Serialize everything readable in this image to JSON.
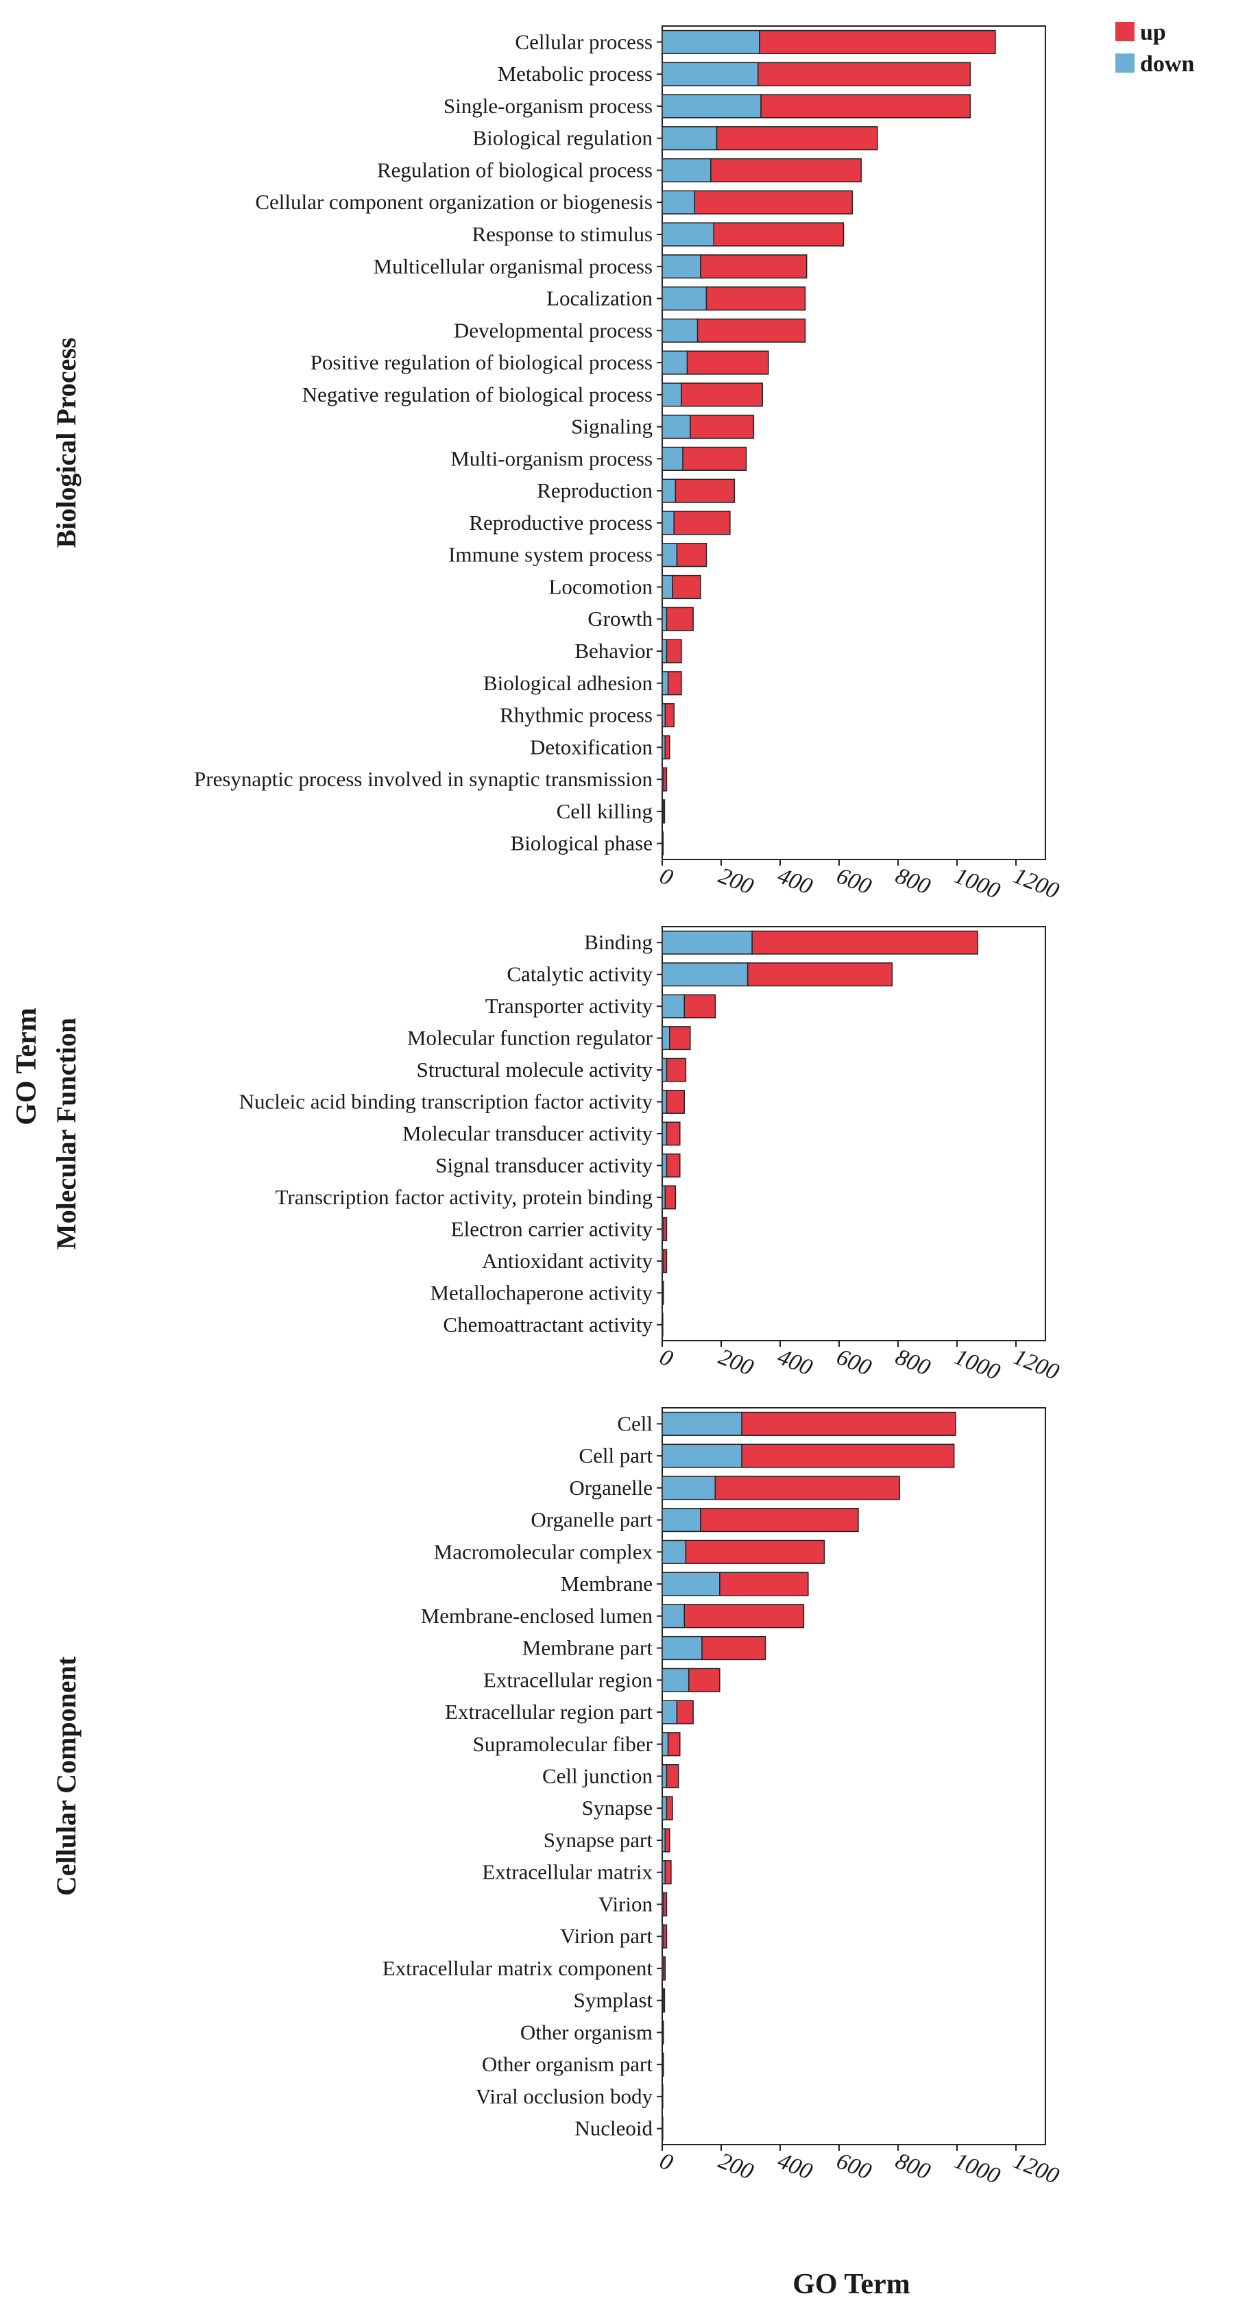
{
  "chart_data": {
    "type": "bar",
    "stacked": true,
    "orientation": "horizontal",
    "y_axis_title": "GO Term",
    "x_axis_title": "GO Term",
    "xlim": [
      0,
      1300
    ],
    "x_ticks": [
      "0",
      "200",
      "400",
      "600",
      "800",
      "1000",
      "1200"
    ],
    "x_tick_values": [
      0,
      200,
      400,
      600,
      800,
      1000,
      1200
    ],
    "legend": [
      {
        "key": "up",
        "label": "up",
        "color": "#e63946"
      },
      {
        "key": "down",
        "label": "down",
        "color": "#6baed6"
      }
    ],
    "panels": [
      {
        "title": "Biological Process",
        "categories": [
          "Cellular process",
          "Metabolic process",
          "Single-organism process",
          "Biological regulation",
          "Regulation of biological process",
          "Cellular component organization or biogenesis",
          "Response to stimulus",
          "Multicellular organismal process",
          "Localization",
          "Developmental process",
          "Positive regulation of biological process",
          "Negative regulation of biological process",
          "Signaling",
          "Multi-organism process",
          "Reproduction",
          "Reproductive process",
          "Immune system process",
          "Locomotion",
          "Growth",
          "Behavior",
          "Biological adhesion",
          "Rhythmic process",
          "Detoxification",
          "Presynaptic process involved in synaptic transmission",
          "Cell killing",
          "Biological phase"
        ],
        "series": [
          {
            "name": "down",
            "values": [
              330,
              325,
              335,
              185,
              165,
              110,
              175,
              130,
              150,
              120,
              85,
              65,
              95,
              70,
              45,
              40,
              50,
              35,
              15,
              15,
              20,
              10,
              10,
              5,
              3,
              1
            ]
          },
          {
            "name": "up",
            "values": [
              800,
              720,
              710,
              545,
              510,
              535,
              440,
              360,
              335,
              365,
              275,
              275,
              215,
              215,
              200,
              190,
              100,
              95,
              90,
              50,
              45,
              30,
              15,
              10,
              5,
              2
            ]
          }
        ]
      },
      {
        "title": "Molecular Function",
        "categories": [
          "Binding",
          "Catalytic activity",
          "Transporter activity",
          "Molecular function regulator",
          "Structural molecule activity",
          "Nucleic acid binding transcription factor activity",
          "Molecular transducer activity",
          "Signal transducer activity",
          "Transcription factor activity, protein binding",
          "Electron carrier activity",
          "Antioxidant activity",
          "Metallochaperone activity",
          "Chemoattractant activity"
        ],
        "series": [
          {
            "name": "down",
            "values": [
              305,
              290,
              75,
              25,
              15,
              15,
              15,
              15,
              10,
              5,
              5,
              2,
              1
            ]
          },
          {
            "name": "up",
            "values": [
              765,
              490,
              105,
              70,
              65,
              60,
              45,
              45,
              35,
              10,
              10,
              2,
              1
            ]
          }
        ]
      },
      {
        "title": "Cellular Component",
        "categories": [
          "Cell",
          "Cell part",
          "Organelle",
          "Organelle part",
          "Macromolecular complex",
          "Membrane",
          "Membrane-enclosed lumen",
          "Membrane part",
          "Extracellular region",
          "Extracellular region part",
          "Supramolecular fiber",
          "Cell junction",
          "Synapse",
          "Synapse part",
          "Extracellular matrix",
          "Virion",
          "Virion part",
          "Extracellular matrix component",
          "Symplast",
          "Other organism",
          "Other organism part",
          "Viral occlusion body",
          "Nucleoid"
        ],
        "series": [
          {
            "name": "down",
            "values": [
              270,
              270,
              180,
              130,
              80,
              195,
              75,
              135,
              90,
              50,
              20,
              15,
              15,
              10,
              10,
              5,
              5,
              5,
              3,
              2,
              2,
              1,
              1
            ]
          },
          {
            "name": "up",
            "values": [
              725,
              720,
              625,
              535,
              470,
              300,
              405,
              215,
              105,
              55,
              40,
              40,
              20,
              15,
              20,
              10,
              10,
              5,
              5,
              2,
              2,
              1,
              1
            ]
          }
        ]
      }
    ]
  }
}
